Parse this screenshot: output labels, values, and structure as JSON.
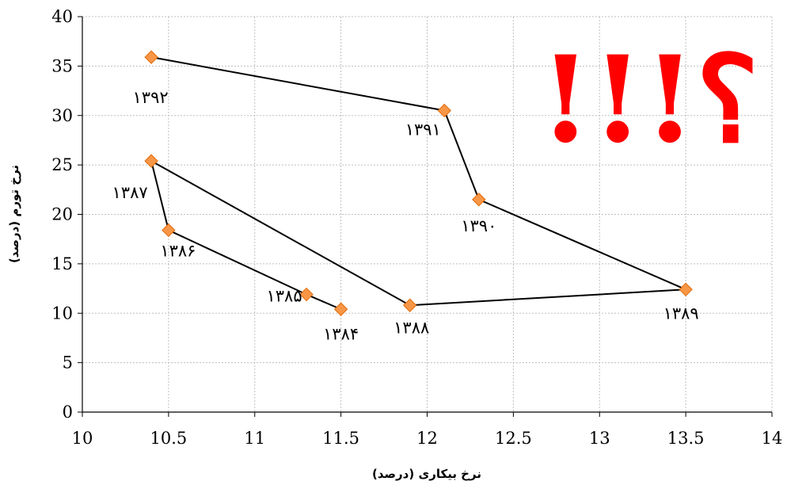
{
  "chart_data": {
    "type": "scatter",
    "title": "",
    "xlabel": "نرخ بیکاری (درصد)",
    "ylabel": "نرخ تورم (درصد)",
    "xlim": [
      10,
      14
    ],
    "ylim": [
      0,
      40
    ],
    "xticks": [
      "10",
      "10.5",
      "11",
      "11.5",
      "12",
      "12.5",
      "13",
      "13.5",
      "14"
    ],
    "yticks": [
      "0",
      "5",
      "10",
      "15",
      "20",
      "25",
      "30",
      "35",
      "40"
    ],
    "grid": true,
    "legend": "none",
    "connected_line": true,
    "series": [
      {
        "points": [
          {
            "label": "۱۳۸۴",
            "x": 11.5,
            "y": 10.4
          },
          {
            "label": "۱۳۸۵",
            "x": 11.3,
            "y": 11.9
          },
          {
            "label": "۱۳۸۶",
            "x": 10.5,
            "y": 18.4
          },
          {
            "label": "۱۳۸۷",
            "x": 10.4,
            "y": 25.4
          },
          {
            "label": "۱۳۸۸",
            "x": 11.9,
            "y": 10.8
          },
          {
            "label": "۱۳۸۹",
            "x": 13.5,
            "y": 12.4
          },
          {
            "label": "۱۳۹۰",
            "x": 12.3,
            "y": 21.5
          },
          {
            "label": "۱۳۹۱",
            "x": 12.1,
            "y": 30.5
          },
          {
            "label": "۱۳۹۲",
            "x": 10.4,
            "y": 35.9
          }
        ]
      }
    ],
    "annotation": {
      "text": "!!!؟",
      "color": "#ff0000"
    },
    "colors": {
      "marker_fill": "#f79646",
      "marker_stroke": "#e46c0a",
      "line": "#000000",
      "grid": "#bfbfbf"
    }
  }
}
